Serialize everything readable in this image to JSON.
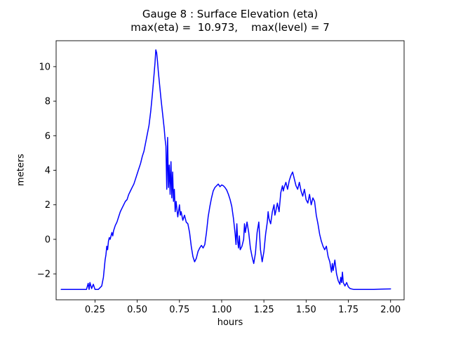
{
  "chart_data": {
    "type": "line",
    "title": "Gauge 8 : Surface Elevation (eta)",
    "subtitle": "max(eta) =  10.973,    max(level) = 7",
    "xlabel": "hours",
    "ylabel": "meters",
    "xlim": [
      0.02,
      2.08
    ],
    "ylim": [
      -3.5,
      11.5
    ],
    "grid": false,
    "legend": "none",
    "line_color": "#0000ff",
    "max_eta": 10.973,
    "max_level": 7,
    "x_ticks": [
      {
        "v": 0.25,
        "label": "0.25"
      },
      {
        "v": 0.5,
        "label": "0.50"
      },
      {
        "v": 0.75,
        "label": "0.75"
      },
      {
        "v": 1.0,
        "label": "1.00"
      },
      {
        "v": 1.25,
        "label": "1.25"
      },
      {
        "v": 1.5,
        "label": "1.50"
      },
      {
        "v": 1.75,
        "label": "1.75"
      },
      {
        "v": 2.0,
        "label": "2.00"
      }
    ],
    "y_ticks": [
      {
        "v": -2,
        "label": "−2"
      },
      {
        "v": 0,
        "label": "0"
      },
      {
        "v": 2,
        "label": "2"
      },
      {
        "v": 4,
        "label": "4"
      },
      {
        "v": 6,
        "label": "6"
      },
      {
        "v": 8,
        "label": "8"
      },
      {
        "v": 10,
        "label": "10"
      }
    ],
    "points": [
      [
        0.05,
        -2.9
      ],
      [
        0.1,
        -2.9
      ],
      [
        0.15,
        -2.9
      ],
      [
        0.18,
        -2.9
      ],
      [
        0.2,
        -2.9
      ],
      [
        0.21,
        -2.55
      ],
      [
        0.215,
        -2.9
      ],
      [
        0.22,
        -2.5
      ],
      [
        0.23,
        -2.85
      ],
      [
        0.24,
        -2.6
      ],
      [
        0.25,
        -2.9
      ],
      [
        0.27,
        -2.9
      ],
      [
        0.29,
        -2.7
      ],
      [
        0.3,
        -2.2
      ],
      [
        0.31,
        -1.2
      ],
      [
        0.315,
        -0.9
      ],
      [
        0.32,
        -0.4
      ],
      [
        0.325,
        -0.6
      ],
      [
        0.33,
        -0.1
      ],
      [
        0.335,
        0.1
      ],
      [
        0.34,
        0.0
      ],
      [
        0.35,
        0.4
      ],
      [
        0.355,
        0.2
      ],
      [
        0.36,
        0.5
      ],
      [
        0.37,
        0.8
      ],
      [
        0.38,
        1.0
      ],
      [
        0.39,
        1.3
      ],
      [
        0.4,
        1.6
      ],
      [
        0.41,
        1.8
      ],
      [
        0.42,
        2.0
      ],
      [
        0.43,
        2.2
      ],
      [
        0.44,
        2.3
      ],
      [
        0.45,
        2.6
      ],
      [
        0.46,
        2.8
      ],
      [
        0.47,
        3.0
      ],
      [
        0.48,
        3.2
      ],
      [
        0.49,
        3.5
      ],
      [
        0.5,
        3.8
      ],
      [
        0.51,
        4.1
      ],
      [
        0.52,
        4.4
      ],
      [
        0.53,
        4.8
      ],
      [
        0.54,
        5.1
      ],
      [
        0.55,
        5.6
      ],
      [
        0.56,
        6.1
      ],
      [
        0.57,
        6.6
      ],
      [
        0.58,
        7.4
      ],
      [
        0.59,
        8.4
      ],
      [
        0.6,
        9.6
      ],
      [
        0.605,
        10.2
      ],
      [
        0.61,
        10.973
      ],
      [
        0.615,
        10.8
      ],
      [
        0.62,
        10.3
      ],
      [
        0.625,
        9.7
      ],
      [
        0.63,
        9.2
      ],
      [
        0.64,
        8.2
      ],
      [
        0.65,
        7.3
      ],
      [
        0.66,
        6.4
      ],
      [
        0.665,
        5.8
      ],
      [
        0.67,
        5.4
      ],
      [
        0.675,
        2.9
      ],
      [
        0.68,
        5.9
      ],
      [
        0.685,
        3.0
      ],
      [
        0.69,
        4.3
      ],
      [
        0.695,
        2.6
      ],
      [
        0.7,
        4.5
      ],
      [
        0.705,
        2.4
      ],
      [
        0.71,
        3.9
      ],
      [
        0.715,
        2.2
      ],
      [
        0.72,
        2.9
      ],
      [
        0.725,
        1.6
      ],
      [
        0.73,
        2.2
      ],
      [
        0.74,
        1.3
      ],
      [
        0.75,
        2.0
      ],
      [
        0.755,
        1.4
      ],
      [
        0.76,
        1.6
      ],
      [
        0.77,
        1.1
      ],
      [
        0.78,
        1.4
      ],
      [
        0.79,
        1.0
      ],
      [
        0.8,
        0.9
      ],
      [
        0.81,
        0.4
      ],
      [
        0.82,
        -0.4
      ],
      [
        0.83,
        -1.0
      ],
      [
        0.84,
        -1.3
      ],
      [
        0.85,
        -1.1
      ],
      [
        0.86,
        -0.7
      ],
      [
        0.87,
        -0.5
      ],
      [
        0.88,
        -0.35
      ],
      [
        0.89,
        -0.5
      ],
      [
        0.9,
        -0.3
      ],
      [
        0.91,
        0.4
      ],
      [
        0.92,
        1.3
      ],
      [
        0.93,
        1.9
      ],
      [
        0.94,
        2.4
      ],
      [
        0.95,
        2.8
      ],
      [
        0.96,
        3.0
      ],
      [
        0.97,
        3.1
      ],
      [
        0.98,
        3.2
      ],
      [
        0.99,
        3.05
      ],
      [
        1.0,
        3.15
      ],
      [
        1.01,
        3.1
      ],
      [
        1.02,
        3.0
      ],
      [
        1.03,
        2.85
      ],
      [
        1.04,
        2.6
      ],
      [
        1.05,
        2.3
      ],
      [
        1.06,
        1.9
      ],
      [
        1.07,
        1.2
      ],
      [
        1.08,
        0.3
      ],
      [
        1.085,
        -0.3
      ],
      [
        1.09,
        0.9
      ],
      [
        1.095,
        -0.1
      ],
      [
        1.1,
        -0.5
      ],
      [
        1.105,
        0.2
      ],
      [
        1.11,
        -0.6
      ],
      [
        1.12,
        -0.4
      ],
      [
        1.13,
        0.0
      ],
      [
        1.135,
        0.9
      ],
      [
        1.14,
        0.4
      ],
      [
        1.15,
        1.0
      ],
      [
        1.16,
        0.4
      ],
      [
        1.17,
        -0.5
      ],
      [
        1.18,
        -1.0
      ],
      [
        1.19,
        -1.4
      ],
      [
        1.2,
        -0.8
      ],
      [
        1.21,
        0.4
      ],
      [
        1.22,
        1.0
      ],
      [
        1.225,
        0.2
      ],
      [
        1.23,
        -0.6
      ],
      [
        1.24,
        -1.3
      ],
      [
        1.25,
        -0.7
      ],
      [
        1.26,
        0.3
      ],
      [
        1.27,
        1.0
      ],
      [
        1.275,
        1.6
      ],
      [
        1.28,
        1.2
      ],
      [
        1.29,
        0.9
      ],
      [
        1.3,
        1.6
      ],
      [
        1.31,
        2.0
      ],
      [
        1.315,
        1.4
      ],
      [
        1.32,
        1.6
      ],
      [
        1.33,
        2.1
      ],
      [
        1.34,
        1.6
      ],
      [
        1.35,
        2.7
      ],
      [
        1.36,
        3.1
      ],
      [
        1.365,
        2.8
      ],
      [
        1.37,
        3.0
      ],
      [
        1.38,
        3.3
      ],
      [
        1.39,
        2.9
      ],
      [
        1.4,
        3.4
      ],
      [
        1.41,
        3.7
      ],
      [
        1.42,
        3.9
      ],
      [
        1.43,
        3.5
      ],
      [
        1.44,
        3.1
      ],
      [
        1.45,
        2.9
      ],
      [
        1.46,
        3.3
      ],
      [
        1.47,
        2.8
      ],
      [
        1.48,
        2.5
      ],
      [
        1.49,
        2.9
      ],
      [
        1.5,
        2.3
      ],
      [
        1.51,
        2.1
      ],
      [
        1.52,
        2.6
      ],
      [
        1.53,
        2.0
      ],
      [
        1.54,
        2.4
      ],
      [
        1.55,
        2.2
      ],
      [
        1.56,
        1.4
      ],
      [
        1.57,
        0.9
      ],
      [
        1.58,
        0.3
      ],
      [
        1.59,
        -0.1
      ],
      [
        1.6,
        -0.4
      ],
      [
        1.61,
        -0.6
      ],
      [
        1.62,
        -0.4
      ],
      [
        1.63,
        -1.0
      ],
      [
        1.64,
        -1.3
      ],
      [
        1.65,
        -1.9
      ],
      [
        1.655,
        -1.4
      ],
      [
        1.66,
        -1.8
      ],
      [
        1.67,
        -1.2
      ],
      [
        1.68,
        -2.0
      ],
      [
        1.69,
        -2.4
      ],
      [
        1.7,
        -2.6
      ],
      [
        1.705,
        -2.2
      ],
      [
        1.71,
        -2.5
      ],
      [
        1.715,
        -1.9
      ],
      [
        1.72,
        -2.5
      ],
      [
        1.73,
        -2.7
      ],
      [
        1.74,
        -2.5
      ],
      [
        1.75,
        -2.75
      ],
      [
        1.76,
        -2.85
      ],
      [
        1.78,
        -2.9
      ],
      [
        1.8,
        -2.9
      ],
      [
        1.85,
        -2.9
      ],
      [
        1.9,
        -2.9
      ],
      [
        1.95,
        -2.88
      ],
      [
        2.0,
        -2.87
      ]
    ]
  }
}
